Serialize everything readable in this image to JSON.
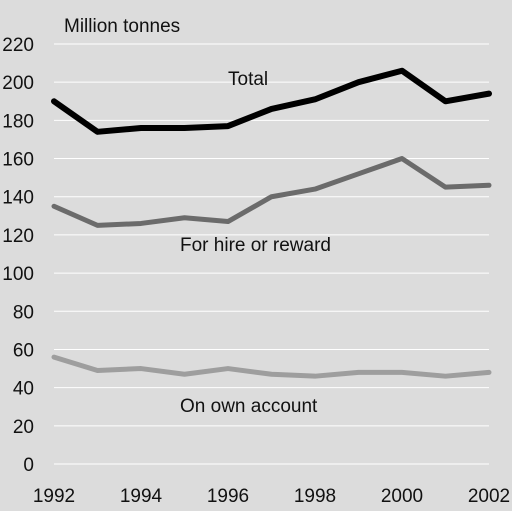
{
  "chart_data": {
    "type": "line",
    "ylabel": "Million tonnes",
    "x": [
      1992,
      1993,
      1994,
      1995,
      1996,
      1997,
      1998,
      1999,
      2000,
      2001,
      2002
    ],
    "xticks": [
      "1992",
      "1994",
      "1996",
      "1998",
      "2000",
      "2002"
    ],
    "yticks": [
      "0",
      "20",
      "40",
      "60",
      "80",
      "100",
      "120",
      "140",
      "160",
      "180",
      "200",
      "220"
    ],
    "xlim": [
      1992,
      2002
    ],
    "ylim": [
      0,
      220
    ],
    "grid": true,
    "legend": "inline labels",
    "series": [
      {
        "name": "Total",
        "values": [
          190,
          174,
          176,
          176,
          177,
          186,
          191,
          200,
          206,
          190,
          194
        ],
        "color": "#000000"
      },
      {
        "name": "For hire or reward",
        "values": [
          135,
          125,
          126,
          129,
          127,
          140,
          144,
          152,
          160,
          145,
          146
        ],
        "color": "#6b6b6b"
      },
      {
        "name": "On own account",
        "values": [
          56,
          49,
          50,
          47,
          50,
          47,
          46,
          48,
          48,
          46,
          48
        ],
        "color": "#9e9e9e"
      }
    ],
    "background": "#dcdcdc"
  }
}
